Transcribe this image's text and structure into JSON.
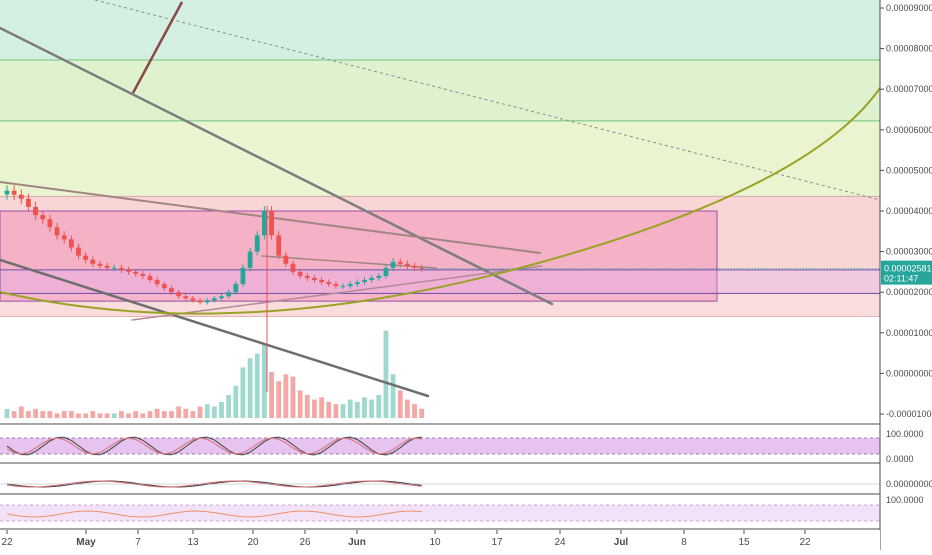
{
  "colors": {
    "up": "#26a69a",
    "down": "#ef5350",
    "band_green_top": "#d4f0e2",
    "band_green_mid": "#dff2cf",
    "band_yellow": "#eaf4d0",
    "band_red_top": "#f8d6d6",
    "band_red_bottom": "#f9dcdc",
    "price_label_bg": "#26a69a",
    "parabola": "#9aa226",
    "rect_fill": "#f06ca9",
    "rect2_fill": "#e3a6ea",
    "stoch_band": "#e7c4ef",
    "rsi_band": "#f3e2f7"
  },
  "price_axis": {
    "ticks": [
      "0.00009000",
      "0.00008000",
      "0.00007000",
      "0.00006000",
      "0.00005000",
      "0.00004000",
      "0.00003000",
      "0.00002000",
      "0.00001000",
      "0.00000000",
      "-0.00001000"
    ],
    "current_price": "0.00002581",
    "countdown": "02:11:47"
  },
  "indicator_axes": {
    "stoch_top": "100.0000",
    "stoch_bottom": "0.0000",
    "macd_zero": "0.00000000",
    "rsi_top": "100.0000"
  },
  "time_axis": {
    "labels": [
      "22",
      "May",
      "7",
      "13",
      "20",
      "26",
      "Jun",
      "10",
      "17",
      "24",
      "Jul",
      "8",
      "15",
      "22"
    ],
    "bold": [
      "May",
      "Jun",
      "Jul"
    ]
  },
  "chart_data": {
    "type": "candlestick",
    "x_start": "Apr 22",
    "interval": "day",
    "close": [
      4.5e-05,
      4.4e-05,
      4.3e-05,
      4.1e-05,
      3.9e-05,
      3.8e-05,
      3.6e-05,
      3.4e-05,
      3.3e-05,
      3.1e-05,
      2.9e-05,
      2.8e-05,
      2.7e-05,
      2.65e-05,
      2.6e-05,
      2.6e-05,
      2.55e-05,
      2.5e-05,
      2.45e-05,
      2.4e-05,
      2.3e-05,
      2.2e-05,
      2.1e-05,
      2e-05,
      1.9e-05,
      1.85e-05,
      1.8e-05,
      1.75e-05,
      1.8e-05,
      1.85e-05,
      1.9e-05,
      2e-05,
      2.2e-05,
      2.6e-05,
      3e-05,
      3.4e-05,
      4e-05,
      3.4e-05,
      2.9e-05,
      2.7e-05,
      2.5e-05,
      2.4e-05,
      2.35e-05,
      2.3e-05,
      2.25e-05,
      2.2e-05,
      2.15e-05,
      2.15e-05,
      2.2e-05,
      2.25e-05,
      2.3e-05,
      2.35e-05,
      2.4e-05,
      2.6e-05,
      2.75e-05,
      2.7e-05,
      2.65e-05,
      2.6e-05,
      2.581e-05
    ],
    "volume": [
      0.4,
      0.3,
      0.5,
      0.3,
      0.4,
      0.3,
      0.3,
      0.2,
      0.3,
      0.3,
      0.2,
      0.2,
      0.3,
      0.2,
      0.2,
      0.2,
      0.3,
      0.2,
      0.3,
      0.2,
      0.3,
      0.4,
      0.3,
      0.3,
      0.5,
      0.4,
      0.3,
      0.5,
      0.6,
      0.5,
      0.7,
      1.0,
      1.4,
      2.2,
      2.6,
      2.8,
      3.2,
      2.0,
      1.6,
      1.9,
      1.8,
      1.2,
      1.0,
      0.8,
      0.9,
      0.7,
      0.6,
      0.6,
      0.8,
      0.7,
      0.9,
      0.8,
      1.0,
      3.8,
      1.9,
      1.2,
      0.8,
      0.6,
      0.4
    ],
    "y_range": [
      -1e-05,
      9e-05
    ],
    "fib_levels": [
      7.72e-05,
      6.22e-05,
      4.36e-05,
      2.53e-05,
      1.4e-05
    ],
    "support_rect": [
      4e-05,
      1.78e-05
    ],
    "inner_rect": [
      2.55e-05,
      1.97e-05
    ]
  }
}
